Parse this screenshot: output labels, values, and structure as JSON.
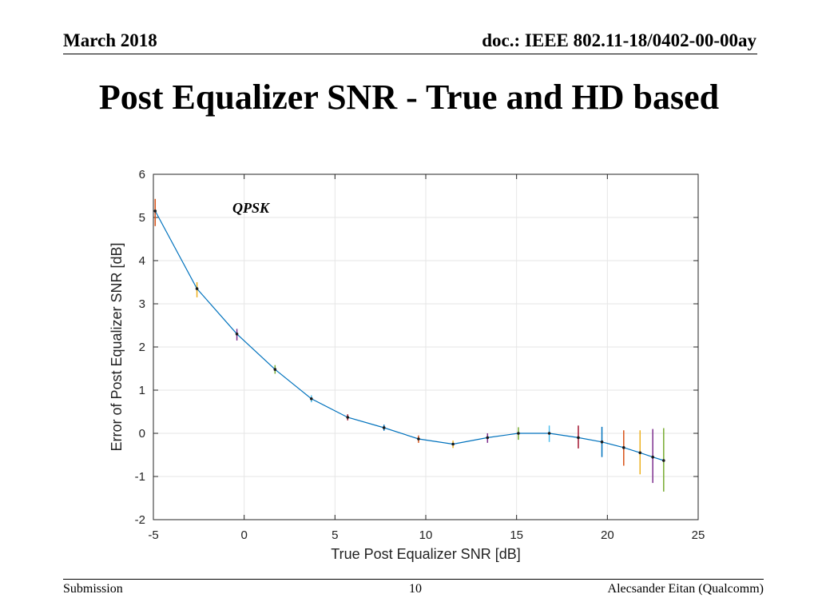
{
  "header": {
    "date": "March 2018",
    "doc": "doc.: IEEE 802.11-18/0402-00-00ay"
  },
  "slide": {
    "title": "Post Equalizer SNR - True and HD based"
  },
  "footer": {
    "left": "Submission",
    "page": "10",
    "right": "Alecsander Eitan (Qualcomm)"
  },
  "chart_data": {
    "type": "line",
    "title": "",
    "xlabel": "True Post Equalizer SNR [dB]",
    "ylabel": "Error of Post Equalizer SNR [dB]",
    "xlim": [
      -5,
      25
    ],
    "ylim": [
      -2,
      6
    ],
    "xticks": [
      -5,
      0,
      5,
      10,
      15,
      20,
      25
    ],
    "yticks": [
      -2,
      -1,
      0,
      1,
      2,
      3,
      4,
      5,
      6
    ],
    "grid": true,
    "annotation": "QPSK",
    "line_color": "#0072BD",
    "series": [
      {
        "x": [
          -4.9,
          -2.6,
          -0.4,
          1.7,
          3.7,
          5.7,
          7.7,
          9.6,
          11.5,
          13.4,
          15.1,
          16.8,
          18.4,
          19.7,
          20.9,
          21.8,
          22.5,
          23.1
        ],
        "y": [
          5.15,
          3.35,
          2.3,
          1.48,
          0.8,
          0.37,
          0.13,
          -0.13,
          -0.25,
          -0.1,
          0.0,
          0.0,
          -0.1,
          -0.2,
          -0.33,
          -0.45,
          -0.55,
          -0.63
        ],
        "err_low": [
          0.35,
          0.2,
          0.15,
          0.1,
          0.08,
          0.07,
          0.07,
          0.09,
          0.09,
          0.12,
          0.15,
          0.2,
          0.25,
          0.35,
          0.42,
          0.5,
          0.6,
          0.72
        ],
        "err_high": [
          0.28,
          0.15,
          0.12,
          0.1,
          0.08,
          0.07,
          0.07,
          0.08,
          0.08,
          0.1,
          0.14,
          0.18,
          0.28,
          0.35,
          0.4,
          0.52,
          0.65,
          0.75
        ],
        "err_colors": [
          "#D95319",
          "#EDB120",
          "#7E2F8E",
          "#77AC30",
          "#4DBEEE",
          "#A2142F",
          "#0072BD",
          "#D95319",
          "#EDB120",
          "#7E2F8E",
          "#77AC30",
          "#4DBEEE",
          "#A2142F",
          "#0072BD",
          "#D95319",
          "#EDB120",
          "#7E2F8E",
          "#77AC30"
        ]
      }
    ]
  }
}
